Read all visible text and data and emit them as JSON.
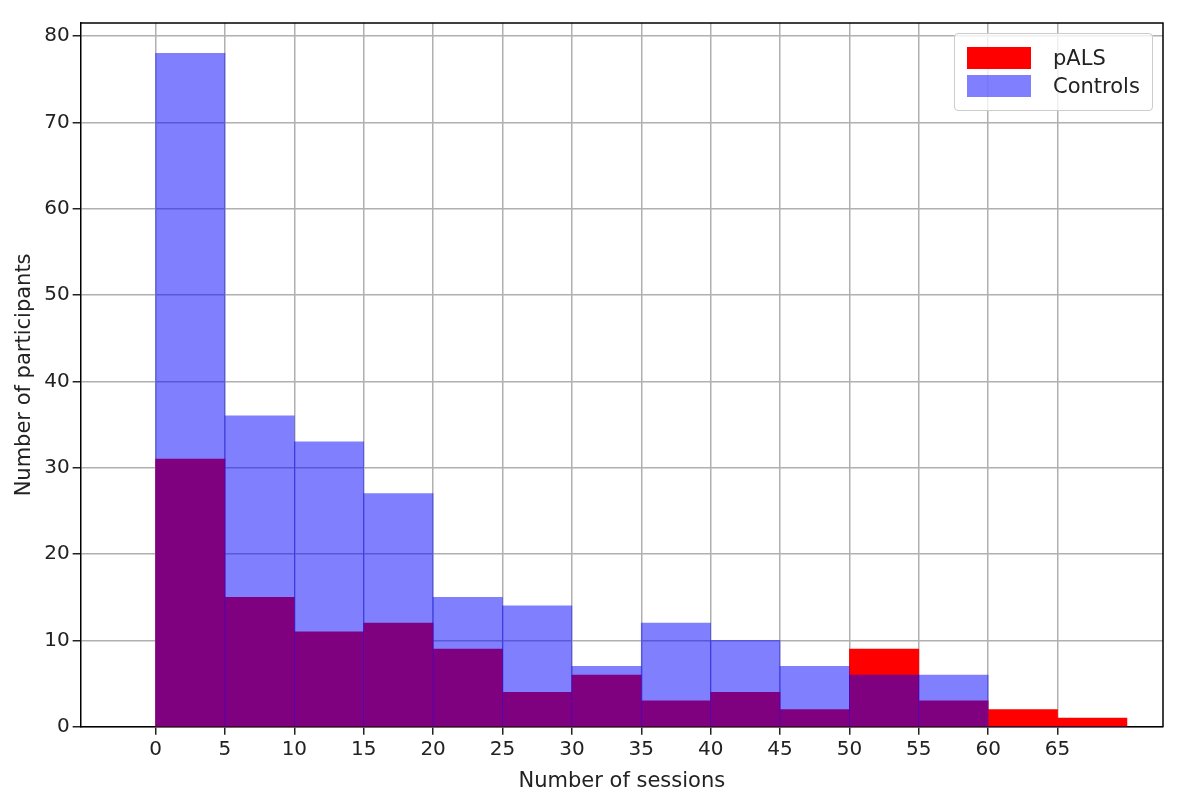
{
  "chart_data": {
    "type": "histogram",
    "xlabel": "Number of sessions",
    "ylabel": "Number of participants",
    "bins": [
      0,
      5,
      10,
      15,
      20,
      25,
      30,
      35,
      40,
      45,
      50,
      55,
      60,
      65,
      70
    ],
    "series": [
      {
        "name": "pALS",
        "color": "#ff0000",
        "values": [
          31,
          15,
          11,
          12,
          9,
          4,
          6,
          3,
          4,
          2,
          9,
          3,
          2,
          1
        ]
      },
      {
        "name": "Controls",
        "color": "#8080ff",
        "values": [
          78,
          36,
          33,
          27,
          15,
          14,
          7,
          12,
          10,
          7,
          6,
          6,
          0,
          0
        ]
      }
    ],
    "xlim": [
      -5.4,
      72.6
    ],
    "xticks": [
      0,
      5,
      10,
      15,
      20,
      25,
      30,
      35,
      40,
      45,
      50,
      55,
      60,
      65
    ],
    "ylim": [
      0,
      81.5
    ],
    "yticks": [
      0,
      10,
      20,
      30,
      40,
      50,
      60,
      70,
      80
    ],
    "grid": true,
    "legend": "top right"
  }
}
